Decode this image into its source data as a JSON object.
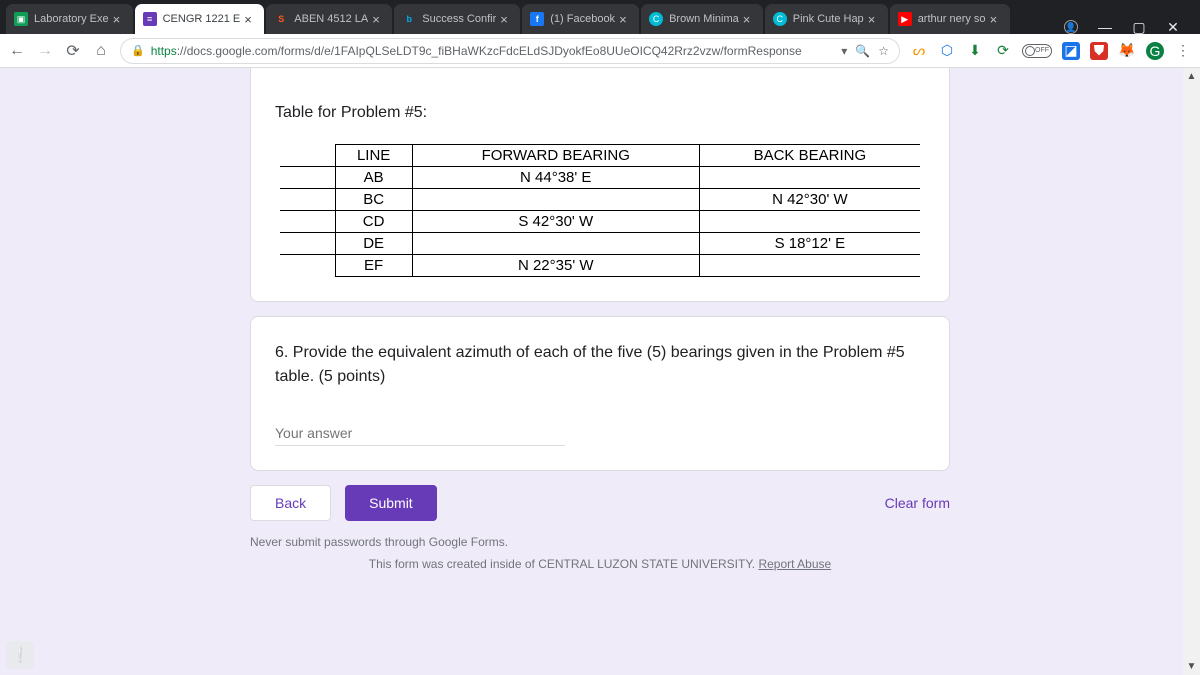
{
  "tabs": [
    {
      "label": "Laboratory Exe",
      "fav": "▣",
      "cls": "fv-g"
    },
    {
      "label": "CENGR 1221 E",
      "fav": "≡",
      "cls": "fv-p",
      "active": true
    },
    {
      "label": "ABEN 4512 LA",
      "fav": "S",
      "cls": "fv-s"
    },
    {
      "label": "Success Confir",
      "fav": "b",
      "cls": "fv-b"
    },
    {
      "label": "(1) Facebook",
      "fav": "f",
      "cls": "fv-f"
    },
    {
      "label": "Brown Minima",
      "fav": "C",
      "cls": "fv-c"
    },
    {
      "label": "Pink Cute Hap",
      "fav": "C",
      "cls": "fv-c"
    },
    {
      "label": "arthur nery so",
      "fav": "▶",
      "cls": "fv-y"
    }
  ],
  "url": {
    "scheme": "https",
    "rest": "://docs.google.com/forms/d/e/1FAIpQLSeLDT9c_fiBHaWKzcFdcELdSJDyokfEo8UUeOICQ42Rrz2vzw/formResponse"
  },
  "card1": {
    "title": "Table for Problem #5:",
    "table": {
      "headers": [
        "",
        "LINE",
        "FORWARD BEARING",
        "BACK BEARING"
      ],
      "rows": [
        [
          "",
          "AB",
          "N 44°38' E",
          ""
        ],
        [
          "",
          "BC",
          "",
          "N 42°30' W"
        ],
        [
          "",
          "CD",
          "S 42°30' W",
          ""
        ],
        [
          "",
          "DE",
          "",
          "S 18°12' E"
        ],
        [
          "",
          "EF",
          "N 22°35' W",
          ""
        ]
      ]
    }
  },
  "card2": {
    "question": "6.  Provide the equivalent azimuth of each of the five (5) bearings given in the Problem #5 table.  (5 points)",
    "placeholder": "Your answer"
  },
  "buttons": {
    "back": "Back",
    "submit": "Submit",
    "clear": "Clear form"
  },
  "warn": "Never submit passwords through Google Forms.",
  "credit_pre": "This form was created inside of CENTRAL LUZON STATE UNIVERSITY. ",
  "credit_link": "Report Abuse",
  "offpill": "OFF"
}
